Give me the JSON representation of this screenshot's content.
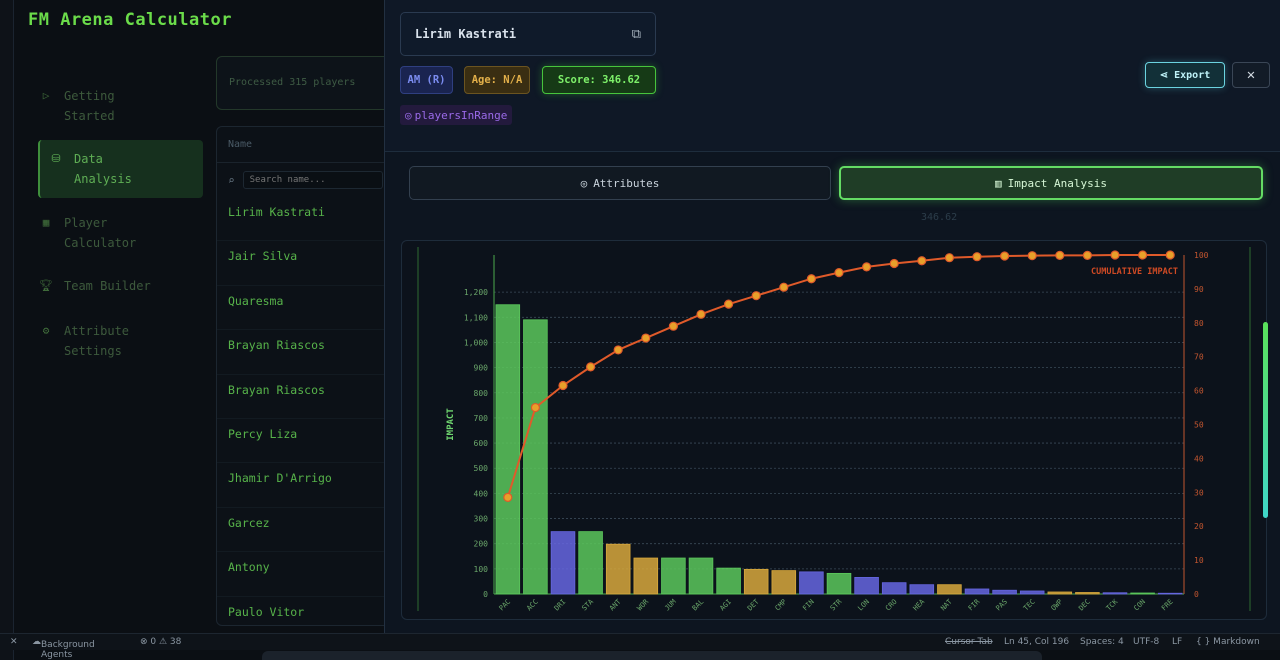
{
  "app": {
    "title": "FM Arena Calculator"
  },
  "sidebar": {
    "items": [
      {
        "label": "Getting\nStarted",
        "icon": "play-icon"
      },
      {
        "label": "Data\nAnalysis",
        "icon": "database-icon"
      },
      {
        "label": "Player\nCalculator",
        "icon": "calculator-icon"
      },
      {
        "label": "Team Builder",
        "icon": "trophy-icon"
      },
      {
        "label": "Attribute\nSettings",
        "icon": "gear-icon"
      }
    ]
  },
  "processed": {
    "text": "Processed 315 players"
  },
  "list": {
    "header": "Name",
    "search_placeholder": "Search name...",
    "players": [
      "Lirim Kastrati",
      "Jair Silva",
      "Quaresma",
      "Brayan Riascos",
      "Brayan Riascos",
      "Percy Liza",
      "Jhamir D'Arrigo",
      "Garcez",
      "Antony",
      "Paulo Vitor"
    ]
  },
  "panel": {
    "player_name": "Lirim Kastrati",
    "position": "AM (R)",
    "age": "Age: N/A",
    "score": "Score: 346.62",
    "tag": "playersInRange",
    "export_label": "Export",
    "close_label": "✕",
    "tabs": {
      "attributes": "Attributes",
      "impact": "Impact Analysis"
    },
    "ghost_score": "346.62"
  },
  "colors": {
    "green": "#5cc85c",
    "blue": "#6666e0",
    "gold": "#d8a83c",
    "line": "#e05a2a"
  },
  "chart_data": {
    "type": "bar",
    "ylabel": "IMPACT",
    "y2label": "",
    "ylim": [
      0,
      1300
    ],
    "y2lim": [
      0,
      100
    ],
    "yticks": [
      0,
      100,
      200,
      300,
      400,
      500,
      600,
      700,
      800,
      900,
      1000,
      1100,
      1200
    ],
    "yticklabels": [
      "0",
      "100",
      "200",
      "300",
      "400",
      "500",
      "600",
      "700",
      "800",
      "900",
      "1,000",
      "1,100",
      "1,200"
    ],
    "y2ticks": [
      0,
      10,
      20,
      30,
      40,
      50,
      60,
      70,
      80,
      90,
      100
    ],
    "categories": [
      "PAC",
      "ACC",
      "DRI",
      "STA",
      "ANT",
      "WOR",
      "JUM",
      "BAL",
      "AGI",
      "DET",
      "CMP",
      "FIN",
      "STR",
      "LON",
      "CRO",
      "HEA",
      "NAT",
      "FIR",
      "PAS",
      "TEC",
      "OWP",
      "DEC",
      "TCK",
      "CON",
      "FRE"
    ],
    "values": [
      1150,
      1090,
      248,
      248,
      198,
      143,
      143,
      143,
      103,
      98,
      93,
      88,
      82,
      66,
      45,
      37,
      37,
      20,
      15,
      12,
      8,
      6,
      5,
      4,
      3
    ],
    "bar_colors": [
      "green",
      "green",
      "blue",
      "green",
      "gold",
      "gold",
      "green",
      "green",
      "green",
      "gold",
      "gold",
      "blue",
      "green",
      "blue",
      "blue",
      "blue",
      "gold",
      "blue",
      "blue",
      "blue",
      "gold",
      "gold",
      "blue",
      "green",
      "blue"
    ],
    "series": [
      {
        "name": "CUMULATIVE IMPACT",
        "values": [
          28.5,
          55,
          61.5,
          67,
          72,
          75.5,
          79,
          82.5,
          85.5,
          88,
          90.5,
          93,
          94.8,
          96.5,
          97.5,
          98.3,
          99.2,
          99.5,
          99.7,
          99.8,
          99.9,
          99.9,
          100,
          100,
          100
        ]
      }
    ]
  },
  "status": {
    "agents": "Background Agents",
    "problems": "⊗ 0 ⚠ 38",
    "cursor": "Cursor Tab",
    "position": "Ln 45, Col 196",
    "spaces": "Spaces: 4",
    "encoding": "UTF-8",
    "eol": "LF",
    "language": "{ } Markdown"
  }
}
